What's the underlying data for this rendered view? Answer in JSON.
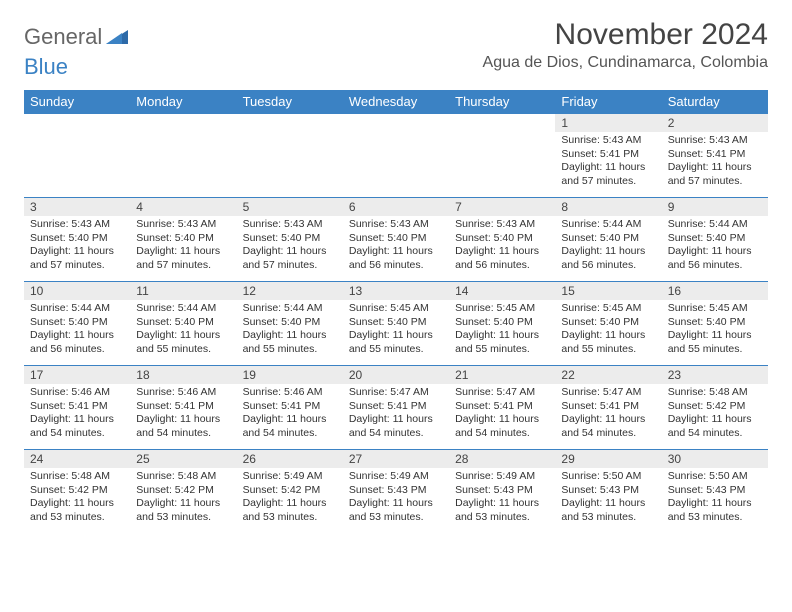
{
  "brand": {
    "part1": "General",
    "part2": "Blue"
  },
  "title": "November 2024",
  "location": "Agua de Dios, Cundinamarca, Colombia",
  "colors": {
    "header_bg": "#3b82c4",
    "header_fg": "#ffffff",
    "daynum_bg": "#ececec",
    "text": "#333333",
    "border": "#3b82c4"
  },
  "day_headers": [
    "Sunday",
    "Monday",
    "Tuesday",
    "Wednesday",
    "Thursday",
    "Friday",
    "Saturday"
  ],
  "weeks": [
    [
      {
        "day": "",
        "sunrise": "",
        "sunset": "",
        "daylight": ""
      },
      {
        "day": "",
        "sunrise": "",
        "sunset": "",
        "daylight": ""
      },
      {
        "day": "",
        "sunrise": "",
        "sunset": "",
        "daylight": ""
      },
      {
        "day": "",
        "sunrise": "",
        "sunset": "",
        "daylight": ""
      },
      {
        "day": "",
        "sunrise": "",
        "sunset": "",
        "daylight": ""
      },
      {
        "day": "1",
        "sunrise": "Sunrise: 5:43 AM",
        "sunset": "Sunset: 5:41 PM",
        "daylight": "Daylight: 11 hours and 57 minutes."
      },
      {
        "day": "2",
        "sunrise": "Sunrise: 5:43 AM",
        "sunset": "Sunset: 5:41 PM",
        "daylight": "Daylight: 11 hours and 57 minutes."
      }
    ],
    [
      {
        "day": "3",
        "sunrise": "Sunrise: 5:43 AM",
        "sunset": "Sunset: 5:40 PM",
        "daylight": "Daylight: 11 hours and 57 minutes."
      },
      {
        "day": "4",
        "sunrise": "Sunrise: 5:43 AM",
        "sunset": "Sunset: 5:40 PM",
        "daylight": "Daylight: 11 hours and 57 minutes."
      },
      {
        "day": "5",
        "sunrise": "Sunrise: 5:43 AM",
        "sunset": "Sunset: 5:40 PM",
        "daylight": "Daylight: 11 hours and 57 minutes."
      },
      {
        "day": "6",
        "sunrise": "Sunrise: 5:43 AM",
        "sunset": "Sunset: 5:40 PM",
        "daylight": "Daylight: 11 hours and 56 minutes."
      },
      {
        "day": "7",
        "sunrise": "Sunrise: 5:43 AM",
        "sunset": "Sunset: 5:40 PM",
        "daylight": "Daylight: 11 hours and 56 minutes."
      },
      {
        "day": "8",
        "sunrise": "Sunrise: 5:44 AM",
        "sunset": "Sunset: 5:40 PM",
        "daylight": "Daylight: 11 hours and 56 minutes."
      },
      {
        "day": "9",
        "sunrise": "Sunrise: 5:44 AM",
        "sunset": "Sunset: 5:40 PM",
        "daylight": "Daylight: 11 hours and 56 minutes."
      }
    ],
    [
      {
        "day": "10",
        "sunrise": "Sunrise: 5:44 AM",
        "sunset": "Sunset: 5:40 PM",
        "daylight": "Daylight: 11 hours and 56 minutes."
      },
      {
        "day": "11",
        "sunrise": "Sunrise: 5:44 AM",
        "sunset": "Sunset: 5:40 PM",
        "daylight": "Daylight: 11 hours and 55 minutes."
      },
      {
        "day": "12",
        "sunrise": "Sunrise: 5:44 AM",
        "sunset": "Sunset: 5:40 PM",
        "daylight": "Daylight: 11 hours and 55 minutes."
      },
      {
        "day": "13",
        "sunrise": "Sunrise: 5:45 AM",
        "sunset": "Sunset: 5:40 PM",
        "daylight": "Daylight: 11 hours and 55 minutes."
      },
      {
        "day": "14",
        "sunrise": "Sunrise: 5:45 AM",
        "sunset": "Sunset: 5:40 PM",
        "daylight": "Daylight: 11 hours and 55 minutes."
      },
      {
        "day": "15",
        "sunrise": "Sunrise: 5:45 AM",
        "sunset": "Sunset: 5:40 PM",
        "daylight": "Daylight: 11 hours and 55 minutes."
      },
      {
        "day": "16",
        "sunrise": "Sunrise: 5:45 AM",
        "sunset": "Sunset: 5:40 PM",
        "daylight": "Daylight: 11 hours and 55 minutes."
      }
    ],
    [
      {
        "day": "17",
        "sunrise": "Sunrise: 5:46 AM",
        "sunset": "Sunset: 5:41 PM",
        "daylight": "Daylight: 11 hours and 54 minutes."
      },
      {
        "day": "18",
        "sunrise": "Sunrise: 5:46 AM",
        "sunset": "Sunset: 5:41 PM",
        "daylight": "Daylight: 11 hours and 54 minutes."
      },
      {
        "day": "19",
        "sunrise": "Sunrise: 5:46 AM",
        "sunset": "Sunset: 5:41 PM",
        "daylight": "Daylight: 11 hours and 54 minutes."
      },
      {
        "day": "20",
        "sunrise": "Sunrise: 5:47 AM",
        "sunset": "Sunset: 5:41 PM",
        "daylight": "Daylight: 11 hours and 54 minutes."
      },
      {
        "day": "21",
        "sunrise": "Sunrise: 5:47 AM",
        "sunset": "Sunset: 5:41 PM",
        "daylight": "Daylight: 11 hours and 54 minutes."
      },
      {
        "day": "22",
        "sunrise": "Sunrise: 5:47 AM",
        "sunset": "Sunset: 5:41 PM",
        "daylight": "Daylight: 11 hours and 54 minutes."
      },
      {
        "day": "23",
        "sunrise": "Sunrise: 5:48 AM",
        "sunset": "Sunset: 5:42 PM",
        "daylight": "Daylight: 11 hours and 54 minutes."
      }
    ],
    [
      {
        "day": "24",
        "sunrise": "Sunrise: 5:48 AM",
        "sunset": "Sunset: 5:42 PM",
        "daylight": "Daylight: 11 hours and 53 minutes."
      },
      {
        "day": "25",
        "sunrise": "Sunrise: 5:48 AM",
        "sunset": "Sunset: 5:42 PM",
        "daylight": "Daylight: 11 hours and 53 minutes."
      },
      {
        "day": "26",
        "sunrise": "Sunrise: 5:49 AM",
        "sunset": "Sunset: 5:42 PM",
        "daylight": "Daylight: 11 hours and 53 minutes."
      },
      {
        "day": "27",
        "sunrise": "Sunrise: 5:49 AM",
        "sunset": "Sunset: 5:43 PM",
        "daylight": "Daylight: 11 hours and 53 minutes."
      },
      {
        "day": "28",
        "sunrise": "Sunrise: 5:49 AM",
        "sunset": "Sunset: 5:43 PM",
        "daylight": "Daylight: 11 hours and 53 minutes."
      },
      {
        "day": "29",
        "sunrise": "Sunrise: 5:50 AM",
        "sunset": "Sunset: 5:43 PM",
        "daylight": "Daylight: 11 hours and 53 minutes."
      },
      {
        "day": "30",
        "sunrise": "Sunrise: 5:50 AM",
        "sunset": "Sunset: 5:43 PM",
        "daylight": "Daylight: 11 hours and 53 minutes."
      }
    ]
  ]
}
